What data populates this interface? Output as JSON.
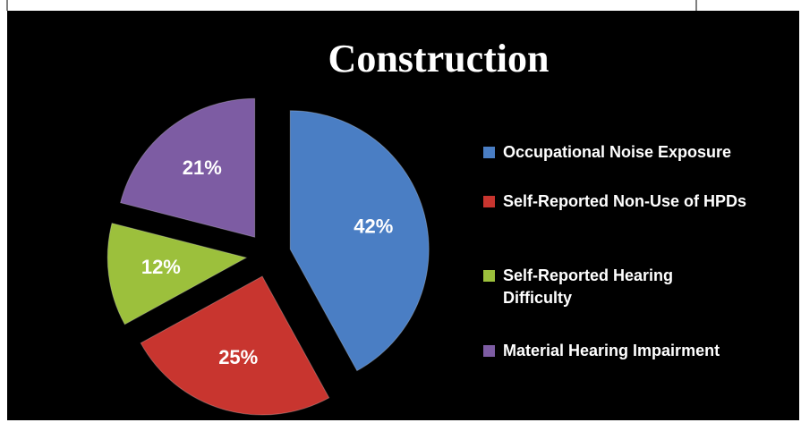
{
  "chart_data": {
    "type": "pie",
    "title": "Construction",
    "categories": [
      "Occupational Noise Exposure",
      "Self-Reported Non-Use of HPDs",
      "Self-Reported Hearing Difficulty",
      "Material Hearing Impairment"
    ],
    "values": [
      42,
      25,
      12,
      21
    ],
    "value_labels": [
      "42%",
      "25%",
      "12%",
      "21%"
    ],
    "colors": [
      "#4a7ec4",
      "#c8352f",
      "#9cc03c",
      "#7d5ca3"
    ],
    "legend": "right"
  }
}
